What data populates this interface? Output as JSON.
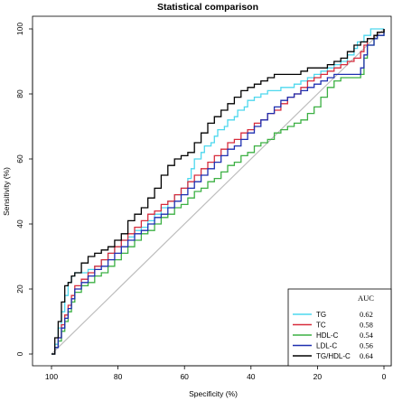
{
  "chart_data": {
    "type": "line",
    "title": "Statistical comparison",
    "xlabel": "Specificity (%)",
    "ylabel": "Sensitivity (%)",
    "xlim": [
      100,
      0
    ],
    "ylim": [
      0,
      100
    ],
    "x_reversed": true,
    "xticks": [
      100,
      80,
      60,
      40,
      20,
      0
    ],
    "yticks": [
      0,
      20,
      40,
      60,
      80,
      100
    ],
    "diagonal_reference": true,
    "legend": {
      "position": "bottom-right",
      "header": "AUC"
    },
    "series": [
      {
        "name": "TG",
        "auc": "0.62",
        "color": "#4dd8ee",
        "points": [
          [
            100,
            0
          ],
          [
            99,
            3
          ],
          [
            98,
            8
          ],
          [
            97,
            13
          ],
          [
            96,
            18
          ],
          [
            95,
            22
          ],
          [
            94,
            24
          ],
          [
            93,
            25
          ],
          [
            91,
            25
          ],
          [
            89,
            26
          ],
          [
            87,
            27
          ],
          [
            85,
            29
          ],
          [
            83,
            31
          ],
          [
            81,
            33
          ],
          [
            79,
            35
          ],
          [
            77,
            36
          ],
          [
            75,
            38
          ],
          [
            73,
            39
          ],
          [
            71,
            41
          ],
          [
            69,
            43
          ],
          [
            67,
            45
          ],
          [
            65,
            47
          ],
          [
            63,
            49
          ],
          [
            61,
            51
          ],
          [
            59,
            54
          ],
          [
            58,
            57
          ],
          [
            57,
            60
          ],
          [
            55,
            62
          ],
          [
            54,
            64
          ],
          [
            52,
            65
          ],
          [
            51,
            67
          ],
          [
            50,
            69
          ],
          [
            48,
            70
          ],
          [
            47,
            72
          ],
          [
            45,
            73
          ],
          [
            44,
            75
          ],
          [
            42,
            76
          ],
          [
            41,
            78
          ],
          [
            39,
            79
          ],
          [
            37,
            80
          ],
          [
            35,
            81
          ],
          [
            33,
            81
          ],
          [
            31,
            82
          ],
          [
            29,
            82
          ],
          [
            27,
            83
          ],
          [
            25,
            84
          ],
          [
            23,
            85
          ],
          [
            21,
            86
          ],
          [
            19,
            87
          ],
          [
            17,
            88
          ],
          [
            15,
            89
          ],
          [
            13,
            90
          ],
          [
            11,
            92
          ],
          [
            9,
            94
          ],
          [
            8,
            96
          ],
          [
            6,
            98
          ],
          [
            4,
            100
          ],
          [
            2,
            100
          ],
          [
            0,
            100
          ]
        ]
      },
      {
        "name": "TC",
        "auc": "0.58",
        "color": "#d72c3c",
        "points": [
          [
            100,
            0
          ],
          [
            99,
            2
          ],
          [
            98,
            5
          ],
          [
            97,
            9
          ],
          [
            96,
            12
          ],
          [
            95,
            15
          ],
          [
            94,
            18
          ],
          [
            93,
            21
          ],
          [
            91,
            23
          ],
          [
            89,
            25
          ],
          [
            87,
            27
          ],
          [
            85,
            29
          ],
          [
            83,
            31
          ],
          [
            81,
            33
          ],
          [
            79,
            35
          ],
          [
            77,
            37
          ],
          [
            75,
            39
          ],
          [
            73,
            41
          ],
          [
            71,
            43
          ],
          [
            69,
            44
          ],
          [
            67,
            46
          ],
          [
            65,
            47
          ],
          [
            63,
            49
          ],
          [
            61,
            51
          ],
          [
            59,
            53
          ],
          [
            57,
            55
          ],
          [
            55,
            57
          ],
          [
            53,
            59
          ],
          [
            51,
            61
          ],
          [
            49,
            63
          ],
          [
            47,
            65
          ],
          [
            45,
            66
          ],
          [
            43,
            68
          ],
          [
            41,
            69
          ],
          [
            39,
            71
          ],
          [
            37,
            72
          ],
          [
            35,
            74
          ],
          [
            33,
            75
          ],
          [
            31,
            77
          ],
          [
            29,
            79
          ],
          [
            27,
            80
          ],
          [
            25,
            82
          ],
          [
            23,
            84
          ],
          [
            21,
            85
          ],
          [
            19,
            86
          ],
          [
            17,
            87
          ],
          [
            15,
            88
          ],
          [
            13,
            89
          ],
          [
            11,
            90
          ],
          [
            9,
            91
          ],
          [
            7,
            93
          ],
          [
            6,
            95
          ],
          [
            5,
            97
          ],
          [
            3,
            98
          ],
          [
            2,
            99
          ],
          [
            0,
            100
          ]
        ]
      },
      {
        "name": "HDL-C",
        "auc": "0.54",
        "color": "#3cb043",
        "points": [
          [
            100,
            0
          ],
          [
            99,
            2
          ],
          [
            98,
            4
          ],
          [
            97,
            7
          ],
          [
            96,
            10
          ],
          [
            95,
            13
          ],
          [
            94,
            16
          ],
          [
            93,
            19
          ],
          [
            91,
            21
          ],
          [
            89,
            22
          ],
          [
            87,
            24
          ],
          [
            85,
            25
          ],
          [
            83,
            27
          ],
          [
            81,
            29
          ],
          [
            79,
            31
          ],
          [
            77,
            33
          ],
          [
            75,
            35
          ],
          [
            73,
            37
          ],
          [
            71,
            38
          ],
          [
            69,
            40
          ],
          [
            67,
            42
          ],
          [
            65,
            43
          ],
          [
            63,
            45
          ],
          [
            61,
            46
          ],
          [
            59,
            48
          ],
          [
            57,
            50
          ],
          [
            55,
            51
          ],
          [
            53,
            53
          ],
          [
            51,
            54
          ],
          [
            49,
            56
          ],
          [
            47,
            58
          ],
          [
            45,
            59
          ],
          [
            43,
            61
          ],
          [
            41,
            62
          ],
          [
            39,
            64
          ],
          [
            37,
            65
          ],
          [
            35,
            66
          ],
          [
            33,
            68
          ],
          [
            31,
            69
          ],
          [
            29,
            70
          ],
          [
            27,
            71
          ],
          [
            25,
            72
          ],
          [
            23,
            74
          ],
          [
            21,
            76
          ],
          [
            19,
            79
          ],
          [
            17,
            82
          ],
          [
            15,
            84
          ],
          [
            13,
            85
          ],
          [
            11,
            85
          ],
          [
            9,
            85
          ],
          [
            7,
            86
          ],
          [
            6,
            91
          ],
          [
            5,
            95
          ],
          [
            3,
            97
          ],
          [
            2,
            98
          ],
          [
            0,
            100
          ]
        ]
      },
      {
        "name": "LDL-C",
        "auc": "0.56",
        "color": "#1e2fb0",
        "points": [
          [
            100,
            0
          ],
          [
            99,
            2
          ],
          [
            98,
            5
          ],
          [
            97,
            8
          ],
          [
            96,
            11
          ],
          [
            95,
            14
          ],
          [
            94,
            17
          ],
          [
            93,
            20
          ],
          [
            91,
            22
          ],
          [
            89,
            24
          ],
          [
            87,
            26
          ],
          [
            85,
            27
          ],
          [
            83,
            29
          ],
          [
            81,
            31
          ],
          [
            79,
            33
          ],
          [
            77,
            35
          ],
          [
            75,
            37
          ],
          [
            73,
            38
          ],
          [
            71,
            40
          ],
          [
            69,
            42
          ],
          [
            67,
            43
          ],
          [
            65,
            45
          ],
          [
            63,
            47
          ],
          [
            61,
            49
          ],
          [
            59,
            51
          ],
          [
            57,
            53
          ],
          [
            55,
            55
          ],
          [
            53,
            57
          ],
          [
            51,
            59
          ],
          [
            49,
            61
          ],
          [
            47,
            63
          ],
          [
            45,
            64
          ],
          [
            43,
            66
          ],
          [
            41,
            68
          ],
          [
            39,
            70
          ],
          [
            37,
            72
          ],
          [
            35,
            74
          ],
          [
            33,
            76
          ],
          [
            31,
            78
          ],
          [
            29,
            79
          ],
          [
            27,
            80
          ],
          [
            25,
            81
          ],
          [
            23,
            82
          ],
          [
            21,
            83
          ],
          [
            19,
            84
          ],
          [
            17,
            85
          ],
          [
            15,
            86
          ],
          [
            13,
            86
          ],
          [
            11,
            86
          ],
          [
            9,
            86
          ],
          [
            7,
            88
          ],
          [
            6,
            92
          ],
          [
            5,
            95
          ],
          [
            3,
            97
          ],
          [
            2,
            98
          ],
          [
            0,
            100
          ]
        ]
      },
      {
        "name": "TG/HDL-C",
        "auc": "0.64",
        "color": "#000000",
        "points": [
          [
            100,
            0
          ],
          [
            99,
            5
          ],
          [
            98,
            10
          ],
          [
            97,
            16
          ],
          [
            96,
            21
          ],
          [
            95,
            22
          ],
          [
            94,
            24
          ],
          [
            93,
            25
          ],
          [
            91,
            28
          ],
          [
            89,
            30
          ],
          [
            87,
            31
          ],
          [
            85,
            32
          ],
          [
            83,
            33
          ],
          [
            81,
            35
          ],
          [
            79,
            37
          ],
          [
            77,
            41
          ],
          [
            75,
            43
          ],
          [
            73,
            45
          ],
          [
            71,
            48
          ],
          [
            69,
            51
          ],
          [
            67,
            55
          ],
          [
            65,
            58
          ],
          [
            63,
            60
          ],
          [
            61,
            61
          ],
          [
            59,
            62
          ],
          [
            57,
            65
          ],
          [
            55,
            68
          ],
          [
            53,
            71
          ],
          [
            51,
            73
          ],
          [
            49,
            75
          ],
          [
            47,
            77
          ],
          [
            45,
            79
          ],
          [
            43,
            81
          ],
          [
            41,
            82
          ],
          [
            39,
            83
          ],
          [
            37,
            84
          ],
          [
            35,
            85
          ],
          [
            33,
            86
          ],
          [
            31,
            86
          ],
          [
            29,
            86
          ],
          [
            27,
            86
          ],
          [
            25,
            87
          ],
          [
            23,
            88
          ],
          [
            21,
            88
          ],
          [
            19,
            88
          ],
          [
            17,
            89
          ],
          [
            15,
            90
          ],
          [
            13,
            91
          ],
          [
            11,
            93
          ],
          [
            9,
            95
          ],
          [
            7,
            96
          ],
          [
            5,
            97
          ],
          [
            3,
            98
          ],
          [
            2,
            99
          ],
          [
            0,
            100
          ]
        ]
      }
    ]
  }
}
